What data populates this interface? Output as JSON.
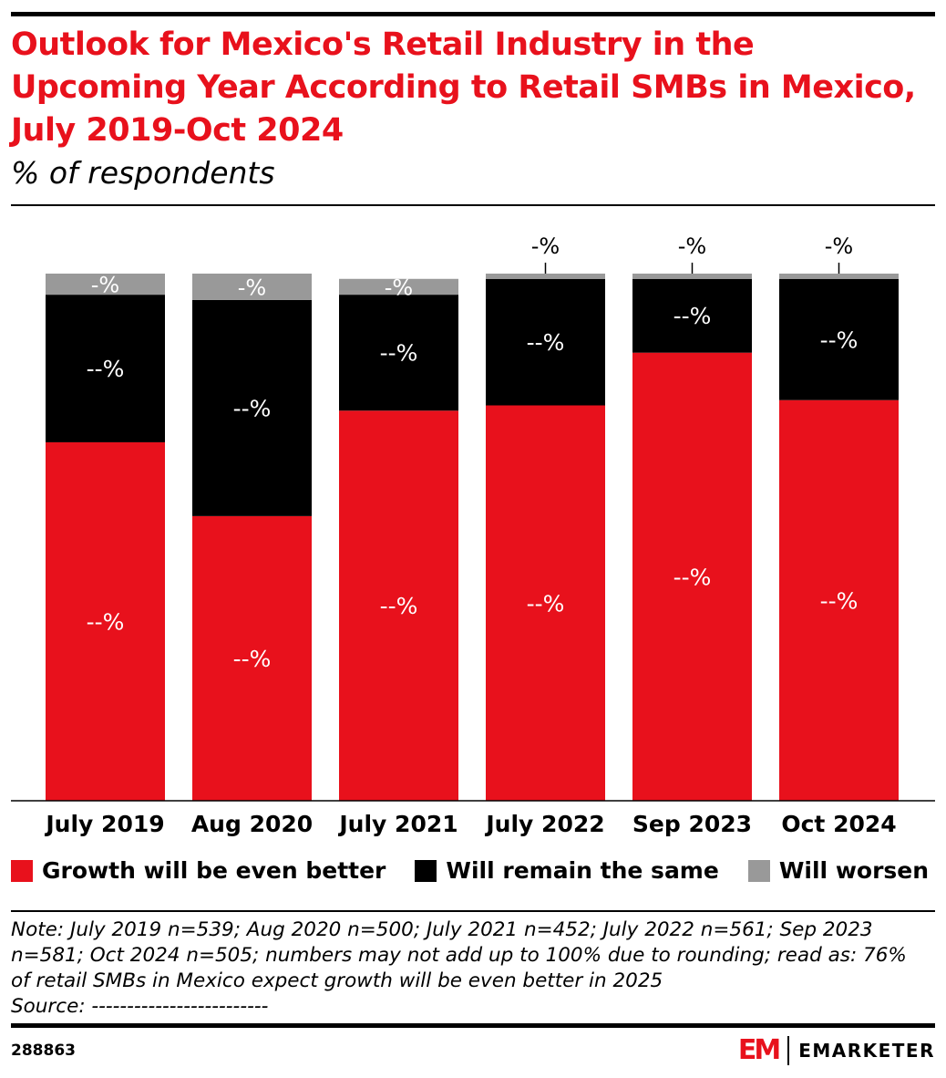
{
  "header": {
    "title": "Outlook for Mexico's Retail Industry in the Upcoming Year According to Retail SMBs in Mexico, July 2019-Oct 2024",
    "subtitle": "% of respondents"
  },
  "chart_data": {
    "type": "bar",
    "stacked": true,
    "title": "Outlook for Mexico's Retail Industry in the Upcoming Year According to Retail SMBs in Mexico, July 2019-Oct 2024",
    "subtitle": "% of respondents",
    "categories": [
      "July 2019",
      "Aug 2020",
      "July 2021",
      "July 2022",
      "Sep 2023",
      "Oct 2024"
    ],
    "ylim": [
      0,
      100
    ],
    "grid": false,
    "legend_position": "bottom",
    "series": [
      {
        "name": "Growth will be even better",
        "color": "#e8111c",
        "values": [
          68,
          54,
          74,
          75,
          85,
          76
        ],
        "labels": [
          "--%",
          "--%",
          "--%",
          "--%",
          "--%",
          "--%"
        ]
      },
      {
        "name": "Will remain the same",
        "color": "#000000",
        "values": [
          28,
          41,
          22,
          24,
          14,
          23
        ],
        "labels": [
          "--%",
          "--%",
          "--%",
          "--%",
          "--%",
          "--%"
        ]
      },
      {
        "name": "Will worsen",
        "color": "#999999",
        "values": [
          4,
          5,
          3,
          1,
          1,
          1
        ],
        "labels": [
          "-%",
          "-%",
          "-%",
          "-%",
          "-%",
          "-%"
        ]
      }
    ]
  },
  "footer": {
    "note": "Note: July 2019 n=539; Aug 2020 n=500; July 2021 n=452; July 2022 n=561; Sep 2023 n=581; Oct 2024 n=505; numbers may not add up to 100% due to rounding; read as: 76% of retail SMBs in Mexico expect growth will be even better in 2025",
    "source": "Source: -------------------------",
    "chart_id": "288863",
    "logo_text": "EMARKETER",
    "logo_mark": "EM"
  }
}
